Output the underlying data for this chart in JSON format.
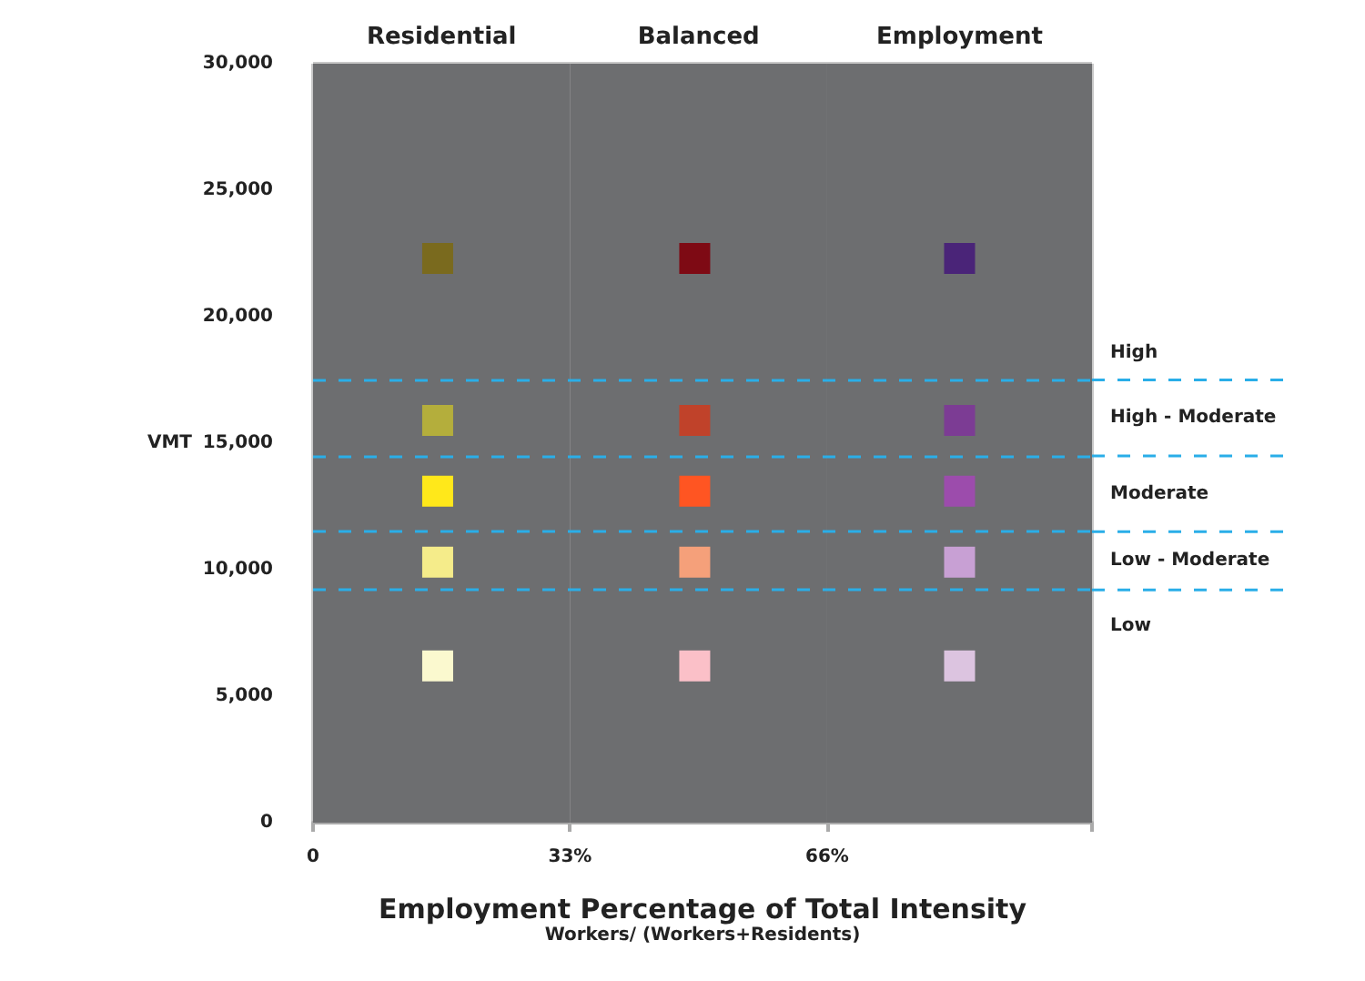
{
  "chart_data": {
    "type": "scatter",
    "xlabel": "Employment Percentage of Total Intensity",
    "subtitle": "Workers/ (Workers+Residents)",
    "ylabel": "VMT",
    "xlim": [
      0,
      100
    ],
    "xticks": [
      0,
      {
        "value": 33,
        "label": "33%"
      },
      {
        "value": 66,
        "label": "66%"
      },
      {
        "value": 100,
        "label": null
      }
    ],
    "ylim": [
      0,
      30000
    ],
    "yticks": [
      0,
      {
        "value": 5000,
        "label": "5,000"
      },
      {
        "value": 10000,
        "label": "10,000"
      },
      {
        "value": 15000,
        "label": "15,000"
      },
      {
        "value": 20000,
        "label": "20,000"
      },
      {
        "value": 25000,
        "label": "25,000"
      },
      {
        "value": 30000,
        "label": "30,000"
      }
    ],
    "grid": true,
    "marker": "square",
    "series": [
      {
        "x": [
          16,
          16,
          16,
          16,
          16
        ],
        "values": [
          22300,
          15900,
          13100,
          10300,
          6200
        ],
        "colors": [
          "#7a6a1e",
          "#b4ae3c",
          "#ffe81a",
          "#f5ec8a",
          "#fbf9cf"
        ]
      },
      {
        "x": [
          49,
          49,
          49,
          49,
          49
        ],
        "values": [
          22300,
          15900,
          13100,
          10300,
          6200
        ],
        "colors": [
          "#7e0a14",
          "#c0422a",
          "#ff5522",
          "#f5a07a",
          "#fbc0c8"
        ]
      },
      {
        "x": [
          83,
          83,
          83,
          83,
          83
        ],
        "values": [
          22300,
          15900,
          13100,
          10300,
          6200
        ],
        "colors": [
          "#4a2478",
          "#7c3c94",
          "#9c4cac",
          "#c8a0d4",
          "#dcc4e0"
        ]
      }
    ],
    "bands": [
      {
        "axis": "x",
        "from": 0,
        "to": 33,
        "label": "Residential",
        "color": "#6d6e70"
      },
      {
        "axis": "x",
        "from": 33,
        "to": 66,
        "label": "Balanced",
        "color": "#6d6e70"
      },
      {
        "axis": "x",
        "from": 66,
        "to": 100,
        "label": "Employment",
        "color": "#6d6e70"
      }
    ],
    "ref_lines": [
      {
        "axis": "y",
        "value": 17500,
        "color": "#2aaee8",
        "line_style": "dashed"
      },
      {
        "axis": "y",
        "value": 14500,
        "color": "#2aaee8",
        "line_style": "dashed"
      },
      {
        "axis": "y",
        "value": 11500,
        "color": "#2aaee8",
        "line_style": "dashed"
      },
      {
        "axis": "y",
        "value": 9200,
        "color": "#2aaee8",
        "line_style": "dashed"
      }
    ],
    "annotations": [
      "High",
      "High - Moderate",
      "Moderate",
      "Low - Moderate",
      "Low"
    ]
  }
}
